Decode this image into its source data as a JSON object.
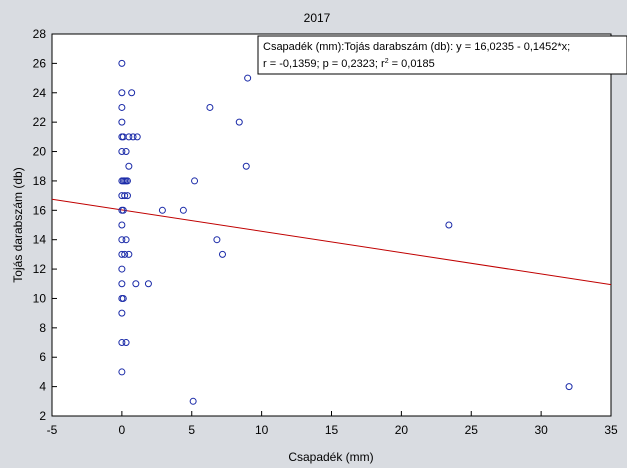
{
  "chart_data": {
    "type": "scatter",
    "title": "2017",
    "xlabel": "Csapadék (mm)",
    "ylabel": "Tojás darabszám (db)",
    "xlim": [
      -5,
      35
    ],
    "ylim": [
      2,
      28
    ],
    "xticks": [
      -5,
      0,
      5,
      10,
      15,
      20,
      25,
      30,
      35
    ],
    "yticks": [
      2,
      4,
      6,
      8,
      10,
      12,
      14,
      16,
      18,
      20,
      22,
      24,
      26,
      28
    ],
    "grid": false,
    "annotation": {
      "line1": "Csapadék (mm):Tojás darabszám (db):   y = 16,0235 - 0,1452*x;",
      "line2_prefix": "r = -0,1359; p = 0,2323; r",
      "line2_sup": "2",
      "line2_suffix": " = 0,0185"
    },
    "regression": {
      "intercept": 16.0235,
      "slope": -0.1452,
      "color": "#c00000"
    },
    "marker_color": "#1a2aa8",
    "points": [
      {
        "x": 0,
        "y": 26
      },
      {
        "x": 0,
        "y": 24
      },
      {
        "x": 0.7,
        "y": 24
      },
      {
        "x": 0,
        "y": 23
      },
      {
        "x": 0,
        "y": 22
      },
      {
        "x": 0,
        "y": 21
      },
      {
        "x": 0.1,
        "y": 21
      },
      {
        "x": 0.5,
        "y": 21
      },
      {
        "x": 0.8,
        "y": 21
      },
      {
        "x": 1.1,
        "y": 21
      },
      {
        "x": 0,
        "y": 20
      },
      {
        "x": 0.3,
        "y": 20
      },
      {
        "x": 0.5,
        "y": 19
      },
      {
        "x": 0,
        "y": 18
      },
      {
        "x": 0.1,
        "y": 18
      },
      {
        "x": 0.2,
        "y": 18
      },
      {
        "x": 0.3,
        "y": 18
      },
      {
        "x": 0.4,
        "y": 18
      },
      {
        "x": 0,
        "y": 17
      },
      {
        "x": 0.2,
        "y": 17
      },
      {
        "x": 0.4,
        "y": 17
      },
      {
        "x": 0,
        "y": 16
      },
      {
        "x": 0.1,
        "y": 16
      },
      {
        "x": 0,
        "y": 15
      },
      {
        "x": 0,
        "y": 14
      },
      {
        "x": 0.3,
        "y": 14
      },
      {
        "x": 0,
        "y": 13
      },
      {
        "x": 0.2,
        "y": 13
      },
      {
        "x": 0.5,
        "y": 13
      },
      {
        "x": 0,
        "y": 12
      },
      {
        "x": 0,
        "y": 11
      },
      {
        "x": 1,
        "y": 11
      },
      {
        "x": 1.9,
        "y": 11
      },
      {
        "x": 0,
        "y": 10
      },
      {
        "x": 0.1,
        "y": 10
      },
      {
        "x": 0,
        "y": 9
      },
      {
        "x": 0,
        "y": 7
      },
      {
        "x": 0.3,
        "y": 7
      },
      {
        "x": 0,
        "y": 5
      },
      {
        "x": 2.9,
        "y": 16
      },
      {
        "x": 4.4,
        "y": 16
      },
      {
        "x": 5.2,
        "y": 18
      },
      {
        "x": 5.1,
        "y": 3
      },
      {
        "x": 6.3,
        "y": 23
      },
      {
        "x": 6.8,
        "y": 14
      },
      {
        "x": 7.2,
        "y": 13
      },
      {
        "x": 8.4,
        "y": 22
      },
      {
        "x": 9.0,
        "y": 25
      },
      {
        "x": 8.9,
        "y": 19
      },
      {
        "x": 23.4,
        "y": 15
      },
      {
        "x": 32.0,
        "y": 4
      }
    ]
  }
}
